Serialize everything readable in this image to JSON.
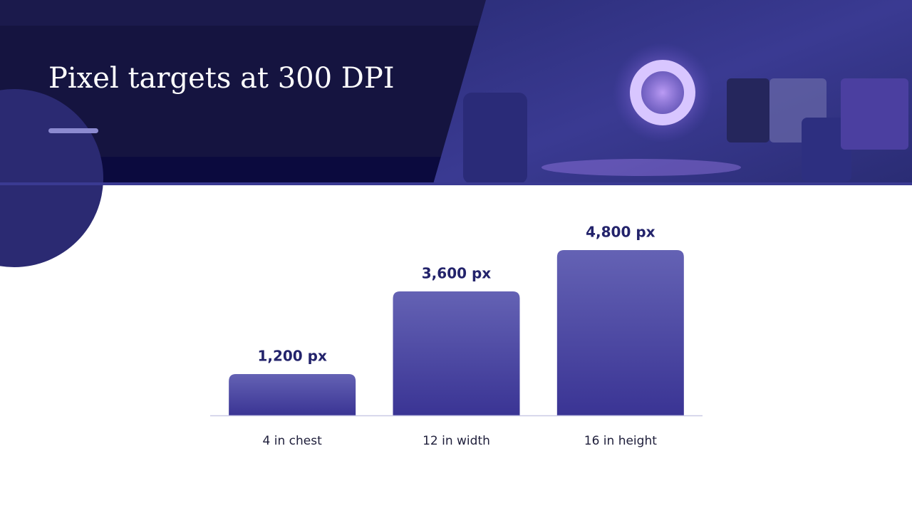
{
  "chart_data": {
    "type": "bar",
    "title": "Pixel targets at 300 DPI",
    "categories": [
      "4 in chest",
      "12 in width",
      "16 in height"
    ],
    "values": [
      1200,
      3600,
      4800
    ],
    "value_labels": [
      "1,200 px",
      "3,600 px",
      "4,800 px"
    ],
    "color": "#4a44a6"
  }
}
